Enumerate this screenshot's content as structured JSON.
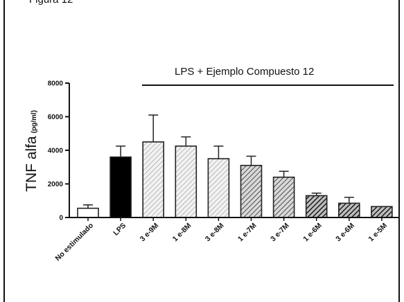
{
  "figure_title": "Figura 12",
  "chart_data": {
    "type": "bar",
    "ylabel_main": "TNF alfa",
    "ylabel_unit": "(pg/ml)",
    "ylim": [
      0,
      8000
    ],
    "yticks": [
      "0",
      "2000",
      "4000",
      "6000",
      "8000"
    ],
    "grid": false,
    "annotation": "LPS +  Ejemplo Compuesto 12",
    "categories": [
      "No estimulado",
      "LPS",
      "3 e-9M",
      "1 e-8M",
      "3 e-8M",
      "1 e-7M",
      "3 e-7M",
      "1 e-6M",
      "3 e-6M",
      "1 e-5M"
    ],
    "values": [
      550,
      3600,
      4500,
      4250,
      3500,
      3100,
      2400,
      1300,
      850,
      650
    ],
    "errors": [
      200,
      650,
      1600,
      550,
      750,
      550,
      350,
      150,
      350,
      0
    ],
    "fills": [
      "white",
      "black",
      "light-hatch",
      "light-hatch",
      "light-hatch",
      "medium-hatch",
      "medium-hatch",
      "dark-hatch",
      "dark-hatch",
      "dark-hatch"
    ],
    "colors": {
      "bar_stroke": "#222222",
      "black": "#000000",
      "white": "#ffffff"
    }
  }
}
